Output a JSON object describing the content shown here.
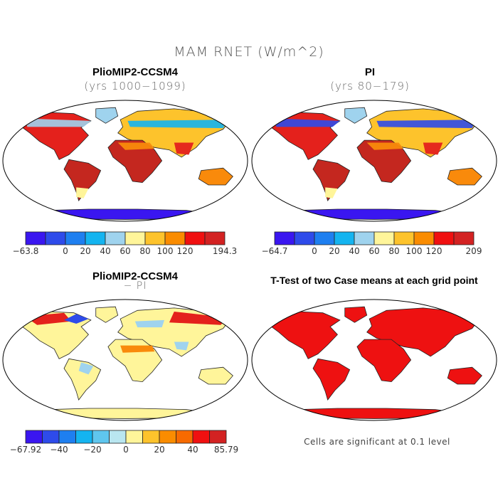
{
  "figure": {
    "main_title": "MAM RNET (W/m^2)"
  },
  "panels": {
    "top_left": {
      "title": "PlioMIP2-CCSM4",
      "subtitle": "(yrs 1000−1099)"
    },
    "top_right": {
      "title": "PI",
      "subtitle": "(yrs 80−179)"
    },
    "bottom_left": {
      "title": "PlioMIP2-CCSM4",
      "subtitle": "− PI"
    },
    "bottom_right": {
      "title": "T-Test of two Case means at each grid point",
      "note": "Cells are significant at 0.1 level"
    }
  },
  "colorbars": {
    "cb1": {
      "colors": [
        "#3a16f0",
        "#2e4bea",
        "#1e7ff0",
        "#14b4f0",
        "#9fd3ee",
        "#fff59a",
        "#fdc32c",
        "#fa8c00",
        "#f01010",
        "#d32222"
      ],
      "labels": [
        "−63.8",
        "0",
        "20",
        "40",
        "60",
        "80",
        "100",
        "120",
        "194.3"
      ]
    },
    "cb2": {
      "colors": [
        "#3a16f0",
        "#2e4bea",
        "#1e7ff0",
        "#14b4f0",
        "#9fd3ee",
        "#fff59a",
        "#fdc32c",
        "#fa8c00",
        "#f01010",
        "#d32222"
      ],
      "labels": [
        "−64.7",
        "0",
        "20",
        "40",
        "60",
        "80",
        "100",
        "120",
        "209"
      ]
    },
    "cb3": {
      "colors": [
        "#3a16f0",
        "#2e4bea",
        "#1e7ff0",
        "#14b4f0",
        "#5fc6ee",
        "#b9e6f0",
        "#fff59a",
        "#fdc32c",
        "#fa8c00",
        "#f76a00",
        "#f01010",
        "#d32222"
      ],
      "labels": [
        "−67.92",
        "−40",
        "−20",
        "0",
        "20",
        "40",
        "85.79"
      ]
    }
  },
  "map_colors": {
    "hot": "#e4211c",
    "dark_red": "#c4271f",
    "orange": "#f98a0b",
    "yellow": "#fdc32c",
    "pale": "#fff59a",
    "light_blue": "#9fd3ee",
    "cyan": "#14b4f0",
    "blue": "#2e4bea",
    "deep_blue": "#3a16f0",
    "sig_red": "#ee1111"
  }
}
